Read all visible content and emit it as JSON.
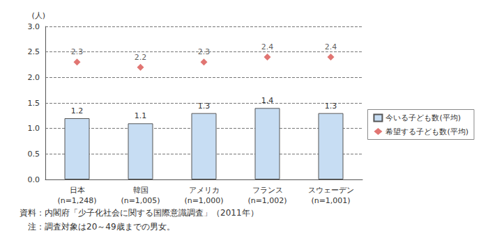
{
  "chart_data": {
    "type": "bar",
    "y_label": "(人)",
    "categories": [
      "日本\n(n=1,248)",
      "韓国\n(n=1,005)",
      "アメリカ\n(n=1,000)",
      "フランス\n(n=1,002)",
      "スウェーデン\n(n=1,001)"
    ],
    "series": [
      {
        "name": "今いる子ども数(平均)",
        "type": "bar",
        "color": "#c7ddf3",
        "values": [
          1.2,
          1.1,
          1.3,
          1.4,
          1.3
        ]
      },
      {
        "name": "希望する子ども数(平均)",
        "type": "scatter",
        "marker": "diamond",
        "color": "#d9534f",
        "values": [
          2.3,
          2.2,
          2.3,
          2.4,
          2.4
        ]
      }
    ],
    "ylim": [
      0,
      3
    ],
    "yticks": [
      {
        "value": 0,
        "label": "0.0"
      },
      0.5,
      {
        "value": 1,
        "label": "1.0"
      },
      1.5,
      {
        "value": 2,
        "label": "2.0"
      },
      2.5,
      {
        "value": 3,
        "label": "3.0"
      }
    ],
    "grid": true,
    "legend": "right",
    "data_labels": true,
    "annotations": [
      "資料：内閣府「少子化社会に関する国際意識調査」（2011年）",
      "　注：調査対象は20～49歳までの男女。"
    ]
  }
}
